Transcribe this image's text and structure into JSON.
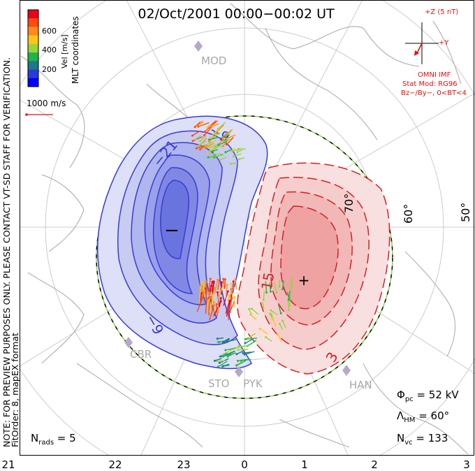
{
  "title": "02/Oct/2001 00:00−00:02 UT",
  "side_note": {
    "line1": "NOTE: FOR PREVIEW PURPOSES ONLY. PLEASE CONTACT VT-SD STAFF FOR VERIFICATION.",
    "line2": "FitOrder: 8, mapEX format"
  },
  "colorbar": {
    "title": "Vel [m/s]",
    "ticks": [
      "600",
      "400",
      "200"
    ],
    "colors": [
      "#e8001c",
      "#ff4a10",
      "#ff8c1a",
      "#ffc41a",
      "#9ad43a",
      "#22b24a",
      "#1a7a8a",
      "#2a3ad8",
      "#0000ff"
    ]
  },
  "coord_label": "MLT coordinates",
  "scale_label": "1000 m/s",
  "imf": {
    "z_label": "+Z (5 nT)",
    "y_label": "+Y",
    "source": "OMNI IMF",
    "stat_mod": "Stat Mod: RG96",
    "bin": "Bz−/By−, 0<BT<4"
  },
  "sites": [
    "MOD",
    "CBR",
    "STO",
    "PYK",
    "HAN"
  ],
  "latitude_labels": [
    "60°",
    "50°",
    "70°"
  ],
  "contour_labels": {
    "neg": [
      "−9",
      "−21",
      "−9"
    ],
    "pos": [
      "15",
      "3",
      "−"
    ]
  },
  "cell_markers": {
    "neg": "−",
    "pos": "+"
  },
  "stats": {
    "phi_pc": "Φ",
    "phi_pc_sub": "pc",
    "phi_pc_value": " = 52 kV",
    "lambda_hm": "Λ",
    "lambda_hm_sub": "HM",
    "lambda_hm_value": " = 60°",
    "n_vc": "N",
    "n_vc_sub": "vc",
    "n_vc_value": " = 133",
    "n_rads": "N",
    "n_rads_sub": "rads",
    "n_rads_value": " = 5"
  },
  "mlt_axis": [
    "21",
    "22",
    "23",
    "0",
    "1",
    "2",
    "3"
  ],
  "colors": {
    "negative_cell": "#3a3ad8",
    "positive_cell": "#d42020",
    "boundary_dash": "#8ad44a",
    "imf_text": "#e01010",
    "site_marker": "#b8a8c8",
    "coast": "#b4b4b4",
    "grid": "#cccccc"
  }
}
